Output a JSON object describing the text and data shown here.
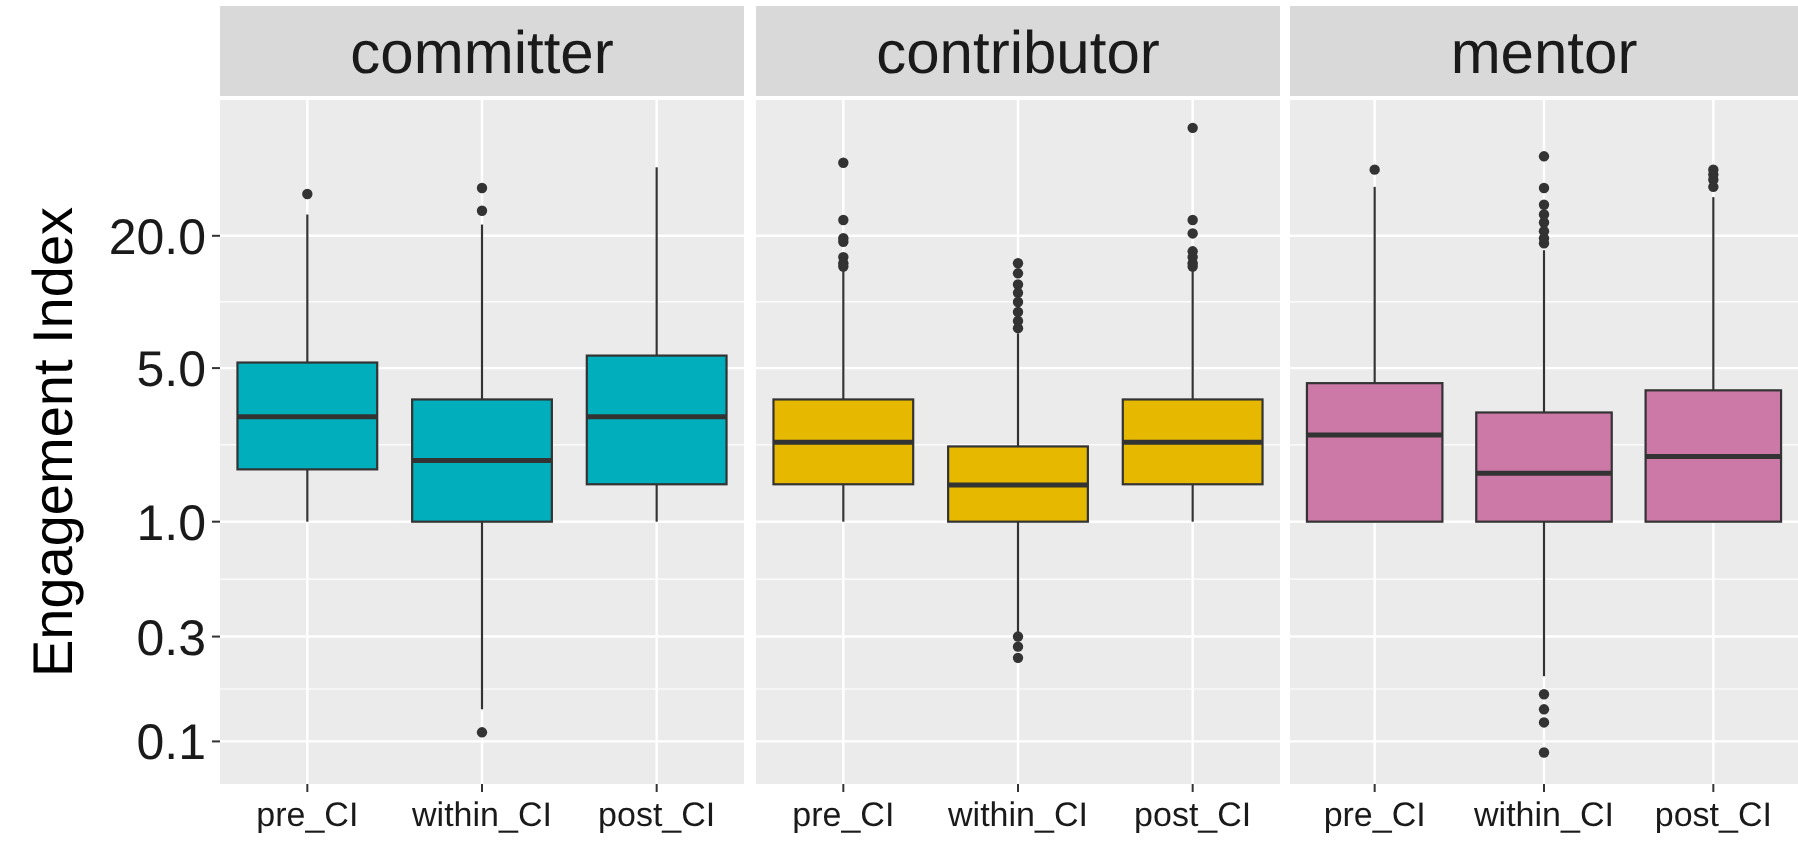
{
  "chart_data": [
    {
      "type": "box",
      "title": "committer",
      "ylabel": "Engagement Index",
      "categories": [
        "pre_CI",
        "within_CI",
        "post_CI"
      ],
      "color": "#00afbb",
      "log": true,
      "grid": true,
      "ylim": [
        0.064,
        83
      ],
      "yticks": [
        0.1,
        0.3,
        {
          "value": 1,
          "label": "1.0"
        },
        {
          "value": 5,
          "label": "5.0"
        },
        {
          "value": 20,
          "label": "20.0"
        }
      ],
      "boxes": [
        {
          "low": 1,
          "q1": 1.73,
          "median": 3,
          "q3": 5.3,
          "high": 25,
          "outliers": [
            31
          ]
        },
        {
          "low": 0.14,
          "q1": 1,
          "median": 1.9,
          "q3": 3.6,
          "high": 22.5,
          "outliers": [
            33,
            26,
            0.11
          ]
        },
        {
          "low": 1,
          "q1": 1.48,
          "median": 3,
          "q3": 5.7,
          "high": 41
        }
      ]
    },
    {
      "type": "box",
      "title": "contributor",
      "categories": [
        "pre_CI",
        "within_CI",
        "post_CI"
      ],
      "color": "#e7b800",
      "log": true,
      "grid": true,
      "tick_labels": "x",
      "ylim": [
        0.064,
        83
      ],
      "yticks": [
        0.1,
        0.3,
        1,
        5,
        20
      ],
      "boxes": [
        {
          "low": 1,
          "q1": 1.48,
          "median": 2.3,
          "q3": 3.6,
          "high": 14,
          "outliers": [
            43,
            23.6,
            19.5,
            18.8,
            16,
            15,
            14.5
          ]
        },
        {
          "low": 0.31,
          "q1": 1,
          "median": 1.47,
          "q3": 2.2,
          "high": 7.2,
          "outliers": [
            15,
            13.5,
            12,
            11,
            10,
            9,
            8.2,
            7.6,
            0.3,
            0.27,
            0.24
          ]
        },
        {
          "low": 1,
          "q1": 1.48,
          "median": 2.3,
          "q3": 3.6,
          "high": 14,
          "outliers": [
            62,
            23.6,
            20.5,
            17,
            16,
            15,
            14.5
          ]
        }
      ]
    },
    {
      "type": "box",
      "title": "mentor",
      "categories": [
        "pre_CI",
        "within_CI",
        "post_CI"
      ],
      "color": "#cc79a7",
      "log": true,
      "grid": true,
      "tick_labels": "x",
      "ylim": [
        0.064,
        83
      ],
      "yticks": [
        0.1,
        0.3,
        1,
        5,
        20
      ],
      "boxes": [
        {
          "low": 1,
          "q1": 1,
          "median": 2.48,
          "q3": 4.27,
          "high": 33.4,
          "outliers": [
            40
          ]
        },
        {
          "low": 0.198,
          "q1": 1,
          "median": 1.66,
          "q3": 3.14,
          "high": 17.2,
          "outliers": [
            46,
            33,
            27.7,
            25,
            23,
            21,
            19.5,
            18.5,
            0.164,
            0.14,
            0.122,
            0.089
          ]
        },
        {
          "low": 1,
          "q1": 1,
          "median": 1.98,
          "q3": 3.96,
          "high": 30,
          "outliers": [
            40,
            38,
            36,
            33.4
          ]
        }
      ]
    }
  ]
}
